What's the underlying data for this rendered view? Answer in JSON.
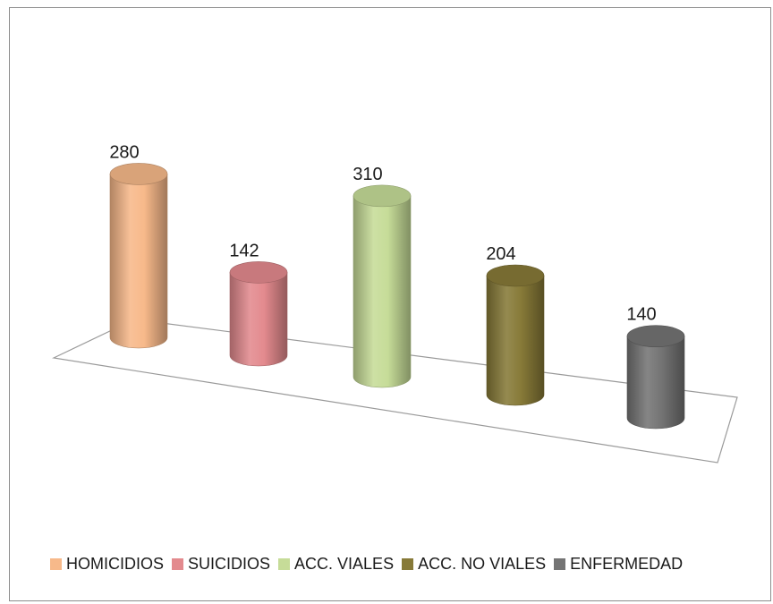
{
  "chart_data": {
    "type": "bar",
    "categories": [
      "HOMICIDIOS",
      "SUICIDIOS",
      "ACC. VIALES",
      "ACC. NO VIALES",
      "ENFERMEDAD"
    ],
    "values": [
      280,
      142,
      310,
      204,
      140
    ],
    "title": "",
    "xlabel": "",
    "ylabel": "",
    "ylim": [
      0,
      350
    ],
    "grid": false,
    "legend_position": "bottom",
    "colors": [
      "#f7b98a",
      "#e38a8e",
      "#c6dc98",
      "#877a38",
      "#747474"
    ],
    "data_labels": [
      "280",
      "142",
      "310",
      "204",
      "140"
    ],
    "legend": [
      {
        "label": "HOMICIDIOS",
        "color": "#f7b98a"
      },
      {
        "label": "SUICIDIOS",
        "color": "#e38a8e"
      },
      {
        "label": "ACC. VIALES",
        "color": "#c6dc98"
      },
      {
        "label": "ACC. NO VIALES",
        "color": "#877a38"
      },
      {
        "label": "ENFERMEDAD",
        "color": "#747474"
      }
    ]
  }
}
